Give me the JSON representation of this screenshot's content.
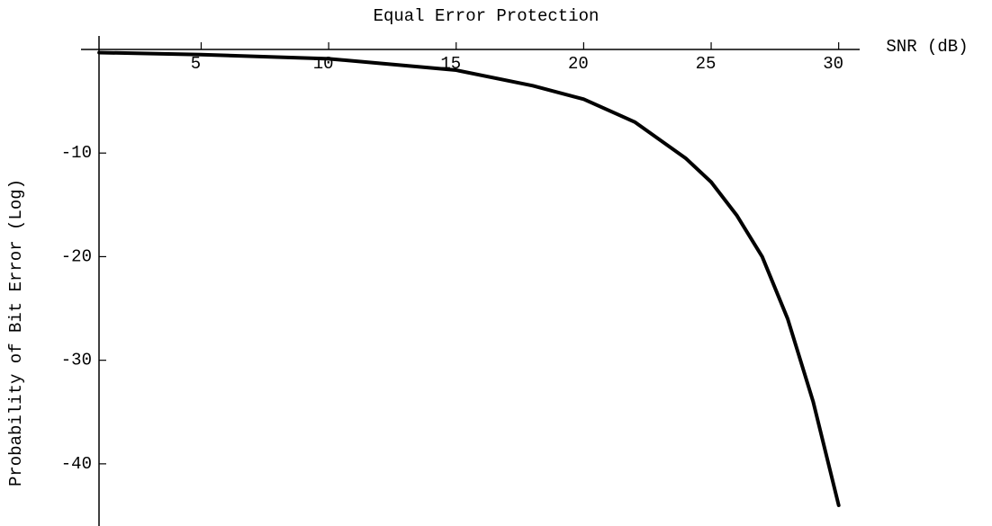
{
  "chart_data": {
    "type": "line",
    "title": "Equal Error Protection",
    "x_label": "SNR (dB)",
    "y_label": "Probability of Bit Error (Log)",
    "series": [
      {
        "name": "Equal Error Protection",
        "color": "#000000",
        "x": [
          1,
          5,
          10,
          15,
          18,
          20,
          22,
          24,
          25,
          26,
          27,
          28,
          29,
          30
        ],
        "values": [
          -0.3,
          -0.5,
          -0.9,
          -2,
          -3.5,
          -4.8,
          -7,
          -10.5,
          -12.8,
          -16,
          -20,
          -26,
          -34,
          -44
        ]
      }
    ],
    "xlim": [
      0.5,
      31
    ],
    "xticks": [
      5,
      10,
      15,
      20,
      25,
      30
    ],
    "ylim": [
      -46,
      0
    ],
    "yticks": [
      -40,
      -30,
      -20,
      -10
    ]
  }
}
